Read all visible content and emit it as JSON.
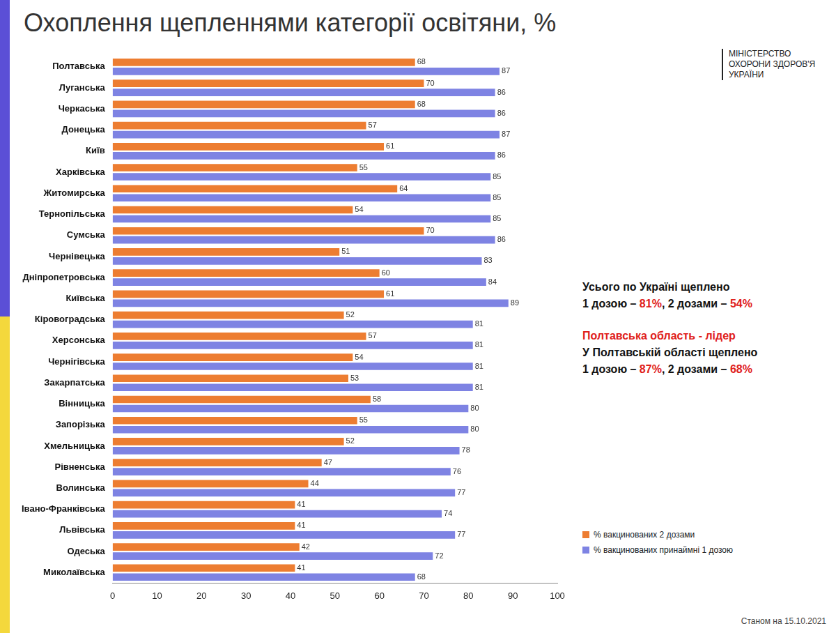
{
  "chart_data": {
    "type": "bar",
    "orientation": "horizontal",
    "title": "Охоплення щепленнями категорії освітяни, %",
    "categories": [
      "Полтавська",
      "Луганська",
      "Черкаська",
      "Донецька",
      "Київ",
      "Харківська",
      "Житомирська",
      "Тернопільська",
      "Сумська",
      "Чернівецька",
      "Дніпропетровська",
      "Київська",
      "Кіровоградська",
      "Херсонська",
      "Чернігівська",
      "Закарпатська",
      "Вінницька",
      "Запорізька",
      "Хмельницька",
      "Рівненська",
      "Волинська",
      "Івано-Франківська",
      "Львівська",
      "Одеська",
      "Миколаївська"
    ],
    "series": [
      {
        "name": "% вакцинованих 2 дозами",
        "color": "#ed7d31",
        "values": [
          68,
          70,
          68,
          57,
          61,
          55,
          64,
          54,
          70,
          51,
          60,
          61,
          52,
          57,
          54,
          53,
          58,
          55,
          52,
          47,
          44,
          41,
          41,
          42,
          41
        ]
      },
      {
        "name": "% вакцинованих принаймні 1 дозою",
        "color": "#7e83e3",
        "values": [
          87,
          86,
          86,
          87,
          86,
          85,
          85,
          85,
          86,
          83,
          84,
          89,
          81,
          81,
          81,
          81,
          80,
          80,
          78,
          76,
          77,
          74,
          77,
          72,
          68
        ]
      }
    ],
    "xlim": [
      0,
      100
    ],
    "xticks": [
      0,
      10,
      20,
      30,
      40,
      50,
      60,
      70,
      80,
      90,
      100
    ],
    "grid": false,
    "data_labels": true,
    "legend": "right",
    "annotations": [
      [
        [
          {
            "text": "Усього по Україні щеплено"
          }
        ],
        [
          {
            "text": "1 дозою – "
          },
          {
            "text": "81%",
            "color": "#e0201b"
          },
          {
            "text": ", 2 дозами – "
          },
          {
            "text": "54%",
            "color": "#e0201b"
          }
        ]
      ],
      [
        [
          {
            "text": "Полтавська область - лідер",
            "color": "#e0201b"
          }
        ],
        [
          {
            "text": "У Полтавській області щеплено"
          }
        ],
        [
          {
            "text": "1 дозою – "
          },
          {
            "text": "87%",
            "color": "#e0201b"
          },
          {
            "text": ", 2 дозами – "
          },
          {
            "text": "68%",
            "color": "#e0201b"
          }
        ]
      ]
    ],
    "logo": "МІНІСТЕРСТВО ОХОРОНИ ЗДОРОВ'Я УКРАЇНИ",
    "footnote": "Станом на 15.10.2021"
  }
}
